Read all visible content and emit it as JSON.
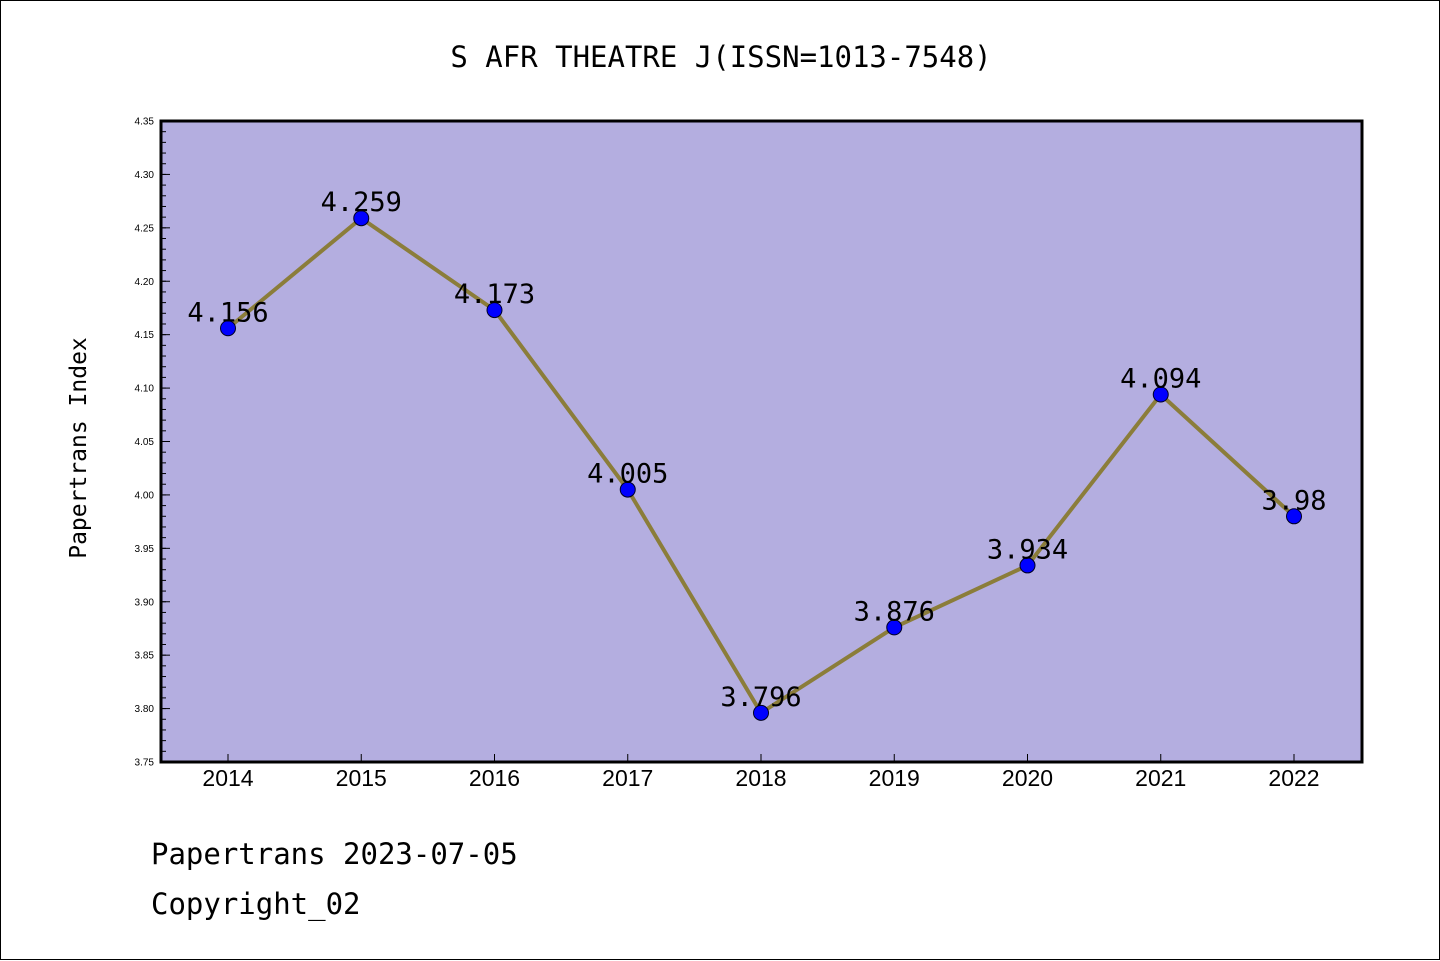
{
  "chart_data": {
    "type": "line",
    "title": "S AFR THEATRE J(ISSN=1013-7548)",
    "xlabel": "",
    "ylabel": "Papertrans Index",
    "categories": [
      "2014",
      "2015",
      "2016",
      "2017",
      "2018",
      "2019",
      "2020",
      "2021",
      "2022"
    ],
    "series": [
      {
        "values": [
          4.156,
          4.259,
          4.173,
          4.005,
          3.796,
          3.876,
          3.934,
          4.094,
          3.98
        ],
        "labels": [
          "4.156",
          "4.259",
          "4.173",
          "4.005",
          "3.796",
          "3.876",
          "3.934",
          "4.094",
          "3.98"
        ]
      }
    ],
    "ylim": [
      3.75,
      4.35
    ],
    "yticks": [
      "3.75",
      "3.80",
      "3.85",
      "3.90",
      "3.95",
      "4.00",
      "4.05",
      "4.10",
      "4.15",
      "4.20",
      "4.25",
      "4.30",
      "4.35"
    ],
    "grid": false,
    "legend": "none",
    "colors": {
      "plot_background": "#b4aee0",
      "line": "#8b7d3a",
      "marker": "#0000ff",
      "axis": "#000000"
    }
  },
  "footer": {
    "generated": "Papertrans 2023-07-05",
    "copyright": "Copyright_02"
  }
}
